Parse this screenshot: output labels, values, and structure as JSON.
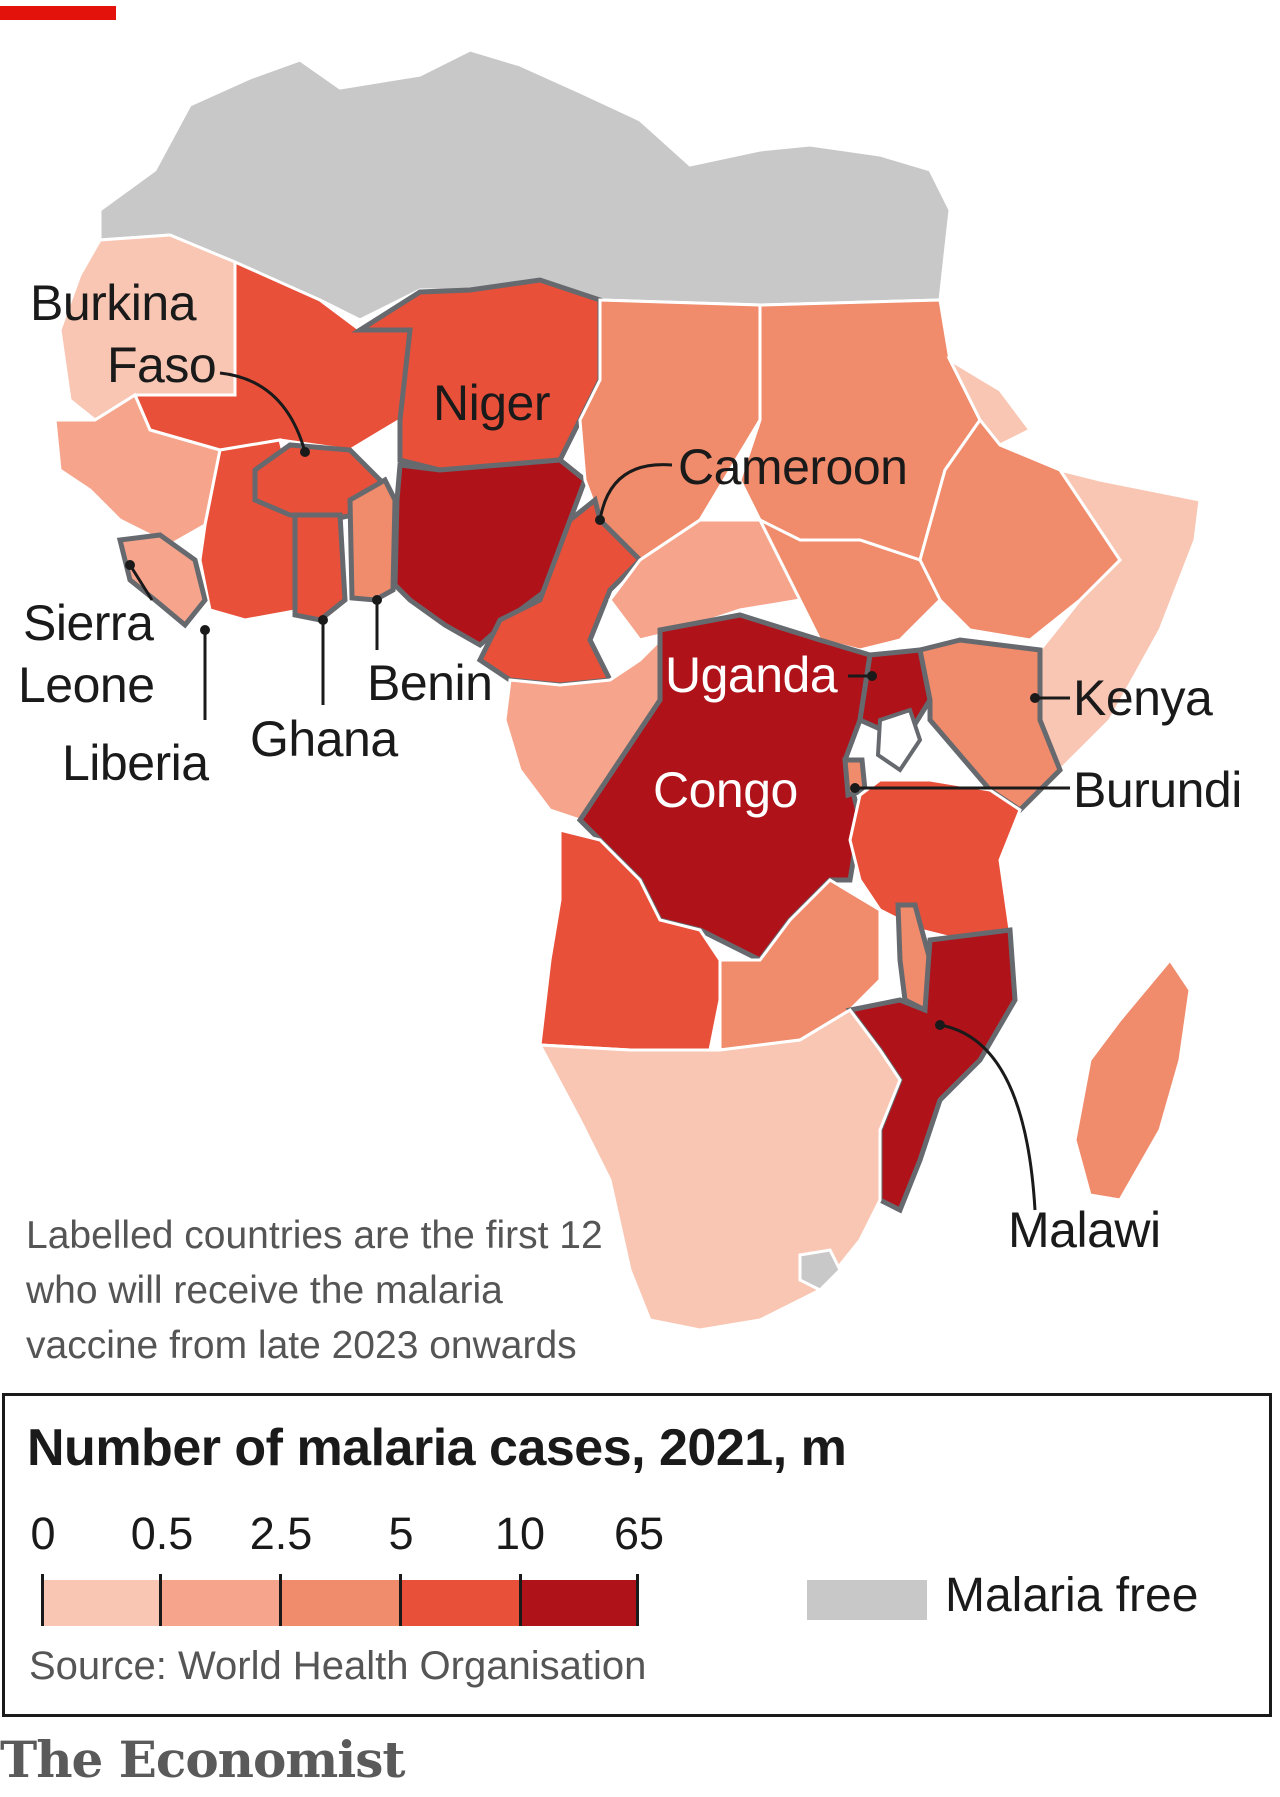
{
  "colors": {
    "accent": "#e3120b",
    "bin_0_0_5": "#f9c6b3",
    "bin_0_5_2_5": "#f6a58c",
    "bin_2_5_5": "#f08b6c",
    "bin_5_10": "#e8503a",
    "bin_10_65": "#b0121a",
    "malaria_free": "#c8c8c8",
    "highlight_border": "#66696e"
  },
  "labels": {
    "burkina_faso": [
      "Burkina",
      "Faso"
    ],
    "niger": "Niger",
    "cameroon": "Cameroon",
    "sierra_leone": [
      "Sierra",
      "Leone"
    ],
    "liberia": "Liberia",
    "ghana": "Ghana",
    "benin": "Benin",
    "uganda": "Uganda",
    "congo": "Congo",
    "kenya": "Kenya",
    "burundi": "Burundi",
    "malawi": "Malawi"
  },
  "note": "Labelled countries are the first 12 who will receive the malaria vaccine from late 2023 onwards",
  "legend": {
    "title": "Number of malaria cases, 2021, m",
    "ticks": [
      "0",
      "0.5",
      "2.5",
      "5",
      "10",
      "65"
    ],
    "malaria_free_label": "Malaria free",
    "source": "Source: World Health Organisation"
  },
  "brand": "The Economist"
}
